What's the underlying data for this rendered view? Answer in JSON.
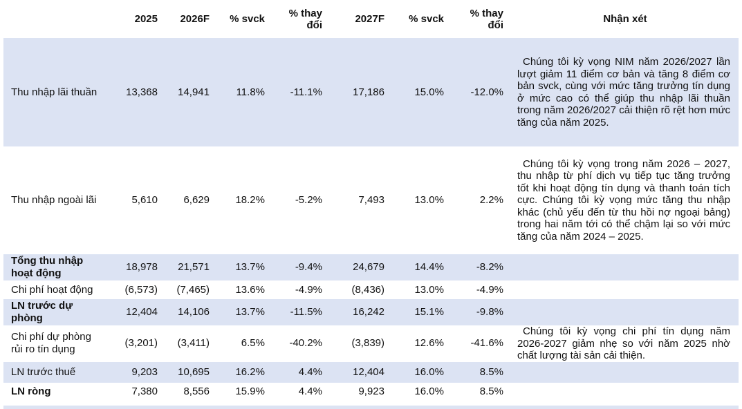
{
  "headers": {
    "y2025": "2025",
    "y2026f": "2026F",
    "yoy1": "% svck",
    "chg1_l1": "% thay",
    "chg1_l2": "đổi",
    "y2027f": "2027F",
    "yoy2": "% svck",
    "chg2_l1": "% thay",
    "chg2_l2": "đổi",
    "note": "Nhận xét"
  },
  "rows": [
    {
      "label": "Thu nhập lãi thuần",
      "v2025": "13,368",
      "v2026": "14,941",
      "yoy1": "11.8%",
      "chg1": "-11.1%",
      "v2027": "17,186",
      "yoy2": "15.0%",
      "chg2": "-12.0%"
    },
    {
      "label": "Thu nhập ngoài lãi",
      "v2025": "5,610",
      "v2026": "6,629",
      "yoy1": "18.2%",
      "chg1": "-5.2%",
      "v2027": "7,493",
      "yoy2": "13.0%",
      "chg2": "2.2%"
    },
    {
      "label_l1": "Tổng thu nhập",
      "label_l2": "hoạt động",
      "v2025": "18,978",
      "v2026": "21,571",
      "yoy1": "13.7%",
      "chg1": "-9.4%",
      "v2027": "24,679",
      "yoy2": "14.4%",
      "chg2": "-8.2%"
    },
    {
      "label": "Chi phí hoạt động",
      "v2025": "(6,573)",
      "v2026": "(7,465)",
      "yoy1": "13.6%",
      "chg1": "-4.9%",
      "v2027": "(8,436)",
      "yoy2": "13.0%",
      "chg2": "-4.9%"
    },
    {
      "label_l1": "LN trước dự",
      "label_l2": "phòng",
      "v2025": "12,404",
      "v2026": "14,106",
      "yoy1": "13.7%",
      "chg1": "-11.5%",
      "v2027": "16,242",
      "yoy2": "15.1%",
      "chg2": "-9.8%"
    },
    {
      "label_l1": "Chi phí dự phòng",
      "label_l2": "rủi ro tín dụng",
      "v2025": "(3,201)",
      "v2026": "(3,411)",
      "yoy1": "6.5%",
      "chg1": "-40.2%",
      "v2027": "(3,839)",
      "yoy2": "12.6%",
      "chg2": "-41.6%"
    },
    {
      "label": "LN trước thuế",
      "v2025": "9,203",
      "v2026": "10,695",
      "yoy1": "16.2%",
      "chg1": "4.4%",
      "v2027": "12,404",
      "yoy2": "16.0%",
      "chg2": "8.5%"
    },
    {
      "label": "LN ròng",
      "v2025": "7,380",
      "v2026": "8,556",
      "yoy1": "15.9%",
      "chg1": "4.4%",
      "v2027": "9,923",
      "yoy2": "16.0%",
      "chg2": "8.5%"
    }
  ],
  "notes": {
    "nii": "Chúng tôi kỳ vọng NIM năm 2026/2027 lần lượt giảm 11 điểm cơ bản và tăng 8 điểm cơ bản svck, cùng với mức tăng trưởng tín dụng ở mức cao có thể giúp thu nhập lãi thuần trong năm 2026/2027 cải thiện rõ rệt hơn mức tăng của năm 2025.",
    "nonii": "Chúng tôi kỳ vọng trong năm 2026 – 2027, thu nhập từ phí dịch vụ tiếp tục tăng trưởng tốt khi hoạt động tín dụng và thanh toán tích cực. Chúng tôi kỳ vọng mức tăng thu nhập khác (chủ yếu đến từ thu hồi nợ ngoại bảng) trong hai năm tới có thể chậm lại so với mức tăng của năm 2024 – 2025.",
    "prov": "Chúng tôi kỳ vọng chi phí tín dụng năm 2026-2027 giảm nhẹ so với năm 2025 nhờ chất lượng tài sản cải thiện."
  }
}
